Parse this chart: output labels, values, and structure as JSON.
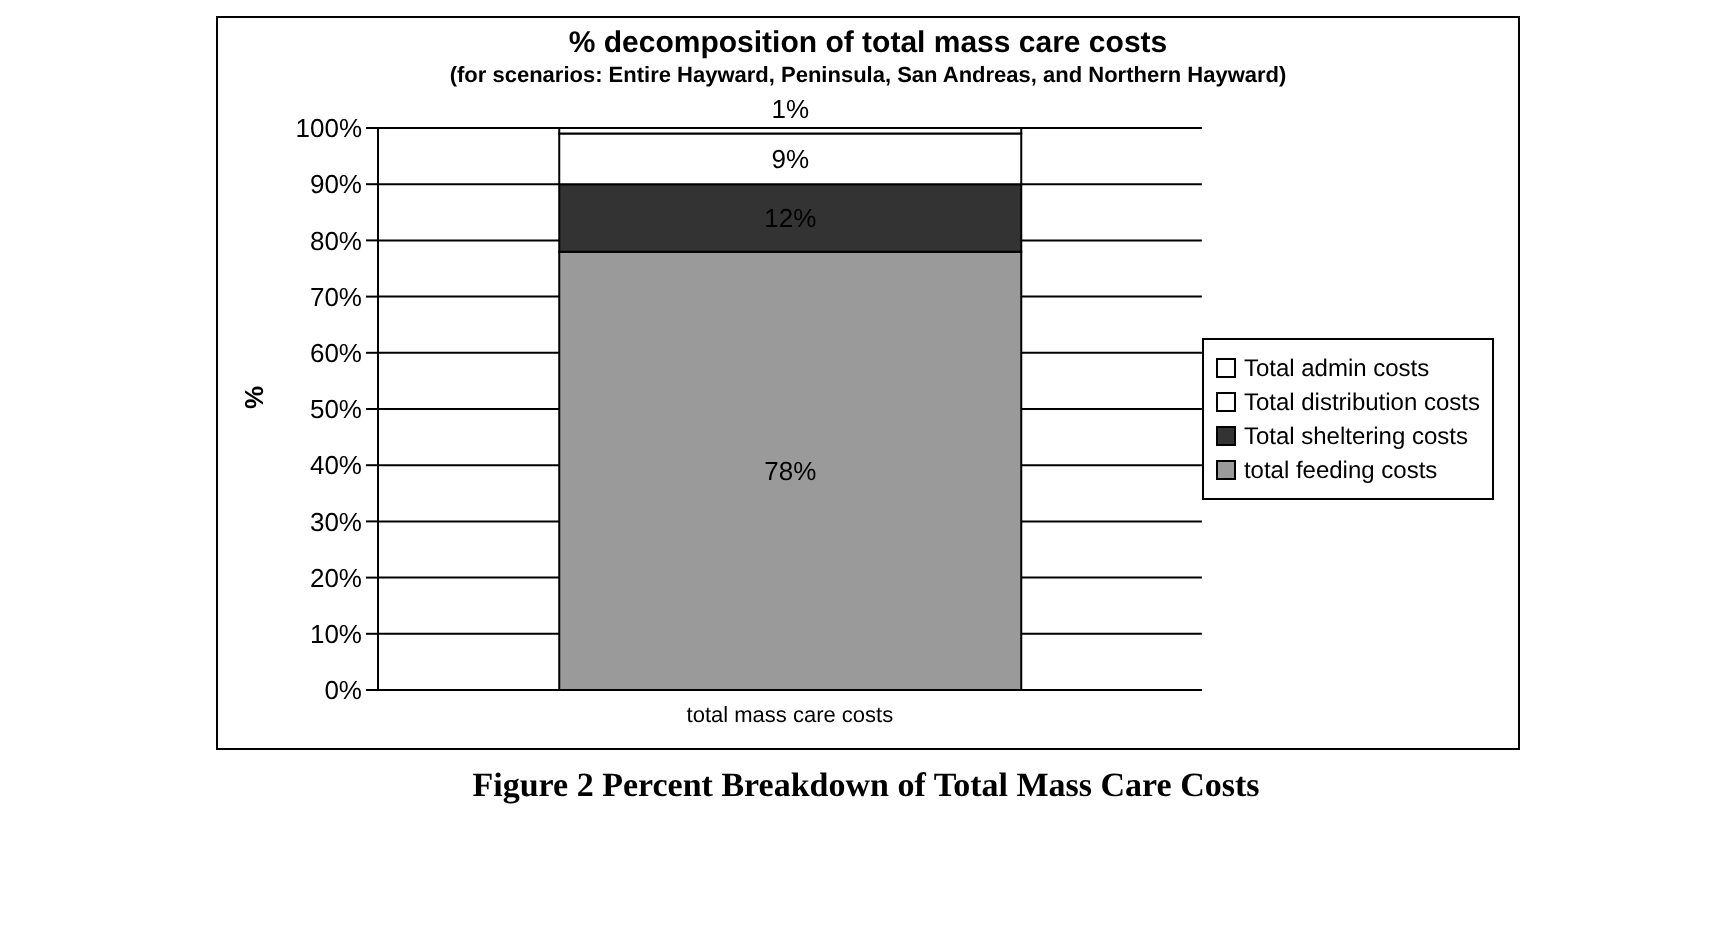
{
  "chart_data": {
    "type": "bar",
    "stacked": true,
    "title": "% decomposition of total mass care costs",
    "subtitle": "(for scenarios: Entire Hayward, Peninsula, San Andreas, and Northern Hayward)",
    "ylabel": "%",
    "categories": [
      "total mass care costs"
    ],
    "series": [
      {
        "name": "total feeding costs",
        "color": "#9a9a9a",
        "values": [
          78
        ],
        "value_labels": [
          "78%"
        ]
      },
      {
        "name": "Total sheltering costs",
        "color": "#333333",
        "values": [
          12
        ],
        "value_labels": [
          "12%"
        ]
      },
      {
        "name": "Total distribution costs",
        "color": "#ffffff",
        "values": [
          9
        ],
        "value_labels": [
          "9%"
        ]
      },
      {
        "name": "Total admin costs",
        "color": "#ffffff",
        "values": [
          1
        ],
        "value_labels": [
          "1%"
        ]
      }
    ],
    "ylim": [
      0,
      100
    ],
    "yticks": [
      {
        "value": 0,
        "label": "0%"
      },
      {
        "value": 10,
        "label": "10%"
      },
      {
        "value": 20,
        "label": "20%"
      },
      {
        "value": 30,
        "label": "30%"
      },
      {
        "value": 40,
        "label": "40%"
      },
      {
        "value": 50,
        "label": "50%"
      },
      {
        "value": 60,
        "label": "60%"
      },
      {
        "value": 70,
        "label": "70%"
      },
      {
        "value": 80,
        "label": "80%"
      },
      {
        "value": 90,
        "label": "90%"
      },
      {
        "value": 100,
        "label": "100%"
      }
    ],
    "grid": "y",
    "legend": "right",
    "annotations": [
      "Figure 2 Percent Breakdown of Total Mass Care Costs"
    ]
  }
}
